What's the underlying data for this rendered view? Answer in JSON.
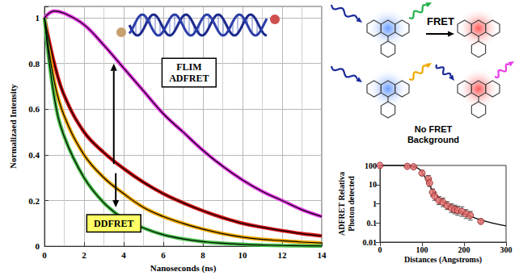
{
  "chart_data": [
    {
      "type": "line",
      "x_label": "Nanoseconds (ns)",
      "y_label": "Normalizaed Intensity",
      "x": [
        0,
        0.5,
        1,
        2,
        3,
        4,
        5,
        6,
        7,
        8,
        9,
        10,
        11,
        12,
        13,
        14
      ],
      "series": [
        {
          "color": "#e83ce8",
          "values": [
            1.0,
            1.03,
            1.02,
            0.97,
            0.88,
            0.78,
            0.68,
            0.58,
            0.5,
            0.42,
            0.35,
            0.29,
            0.24,
            0.2,
            0.16,
            0.13
          ]
        },
        {
          "color": "#d01414",
          "values": [
            1.0,
            0.8,
            0.66,
            0.5,
            0.41,
            0.34,
            0.28,
            0.23,
            0.19,
            0.155,
            0.125,
            0.1,
            0.083,
            0.068,
            0.055,
            0.045
          ]
        },
        {
          "color": "#f0a800",
          "values": [
            1.0,
            0.72,
            0.57,
            0.4,
            0.3,
            0.23,
            0.17,
            0.13,
            0.1,
            0.075,
            0.055,
            0.04,
            0.03,
            0.024,
            0.018,
            0.014
          ]
        },
        {
          "color": "#4cc04c",
          "values": [
            1.0,
            0.65,
            0.48,
            0.3,
            0.19,
            0.12,
            0.08,
            0.05,
            0.032,
            0.02,
            0.013,
            0.008,
            0.005,
            0.003,
            0.002,
            0.001
          ]
        }
      ],
      "xlim": [
        0,
        14
      ],
      "xticks": [
        0,
        2,
        4,
        6,
        8,
        10,
        12,
        14
      ],
      "ylim": [
        0,
        1.05
      ],
      "yticks": [
        0,
        0.2,
        0.4,
        0.6,
        0.8,
        1
      ],
      "grid": true,
      "annotations": [
        "FLIM ADFRET",
        "DDFRET"
      ]
    },
    {
      "type": "scatter",
      "log": "y",
      "x_label": "Distances (Angstroms)",
      "y_label": "ADFRET Relativa Photon detected",
      "series": [
        {
          "type": "scatter",
          "color": "#e87070",
          "x": [
            0,
            65,
            80,
            100,
            115,
            118,
            125,
            130,
            140,
            150,
            160,
            170,
            178,
            185,
            195,
            205,
            215,
            240
          ],
          "values": [
            100,
            90,
            85,
            40,
            20,
            12,
            4,
            2.5,
            1.5,
            1.2,
            0.8,
            0.6,
            0.5,
            0.45,
            0.4,
            0.3,
            0.25,
            0.12
          ],
          "error_low": [
            90,
            80,
            75,
            30,
            12,
            8,
            2.5,
            1.5,
            0.9,
            0.7,
            0.5,
            0.35,
            0.3,
            0.25,
            0.22,
            0.17,
            0.14,
            0.1
          ],
          "error_high": [
            110,
            100,
            95,
            55,
            30,
            20,
            6,
            4,
            2.4,
            2,
            1.3,
            1,
            0.85,
            0.75,
            0.7,
            0.5,
            0.4,
            0.15
          ]
        },
        {
          "type": "line",
          "color": "#000000",
          "x": [
            0,
            50,
            80,
            95,
            105,
            115,
            125,
            140,
            160,
            180,
            200,
            230,
            260,
            300
          ],
          "values": [
            100,
            100,
            90,
            60,
            30,
            12,
            5,
            2,
            0.9,
            0.5,
            0.3,
            0.17,
            0.11,
            0.07
          ]
        }
      ],
      "xlim": [
        0,
        300
      ],
      "xticks": [
        0,
        100,
        200,
        300
      ],
      "ylim": [
        0.01,
        100
      ],
      "yticks": [
        0.01,
        0.1,
        1,
        10,
        100
      ],
      "grid": false
    }
  ],
  "diagram": {
    "fret_label": "FRET",
    "no_fret_label": [
      "No FRET",
      "Background"
    ]
  }
}
